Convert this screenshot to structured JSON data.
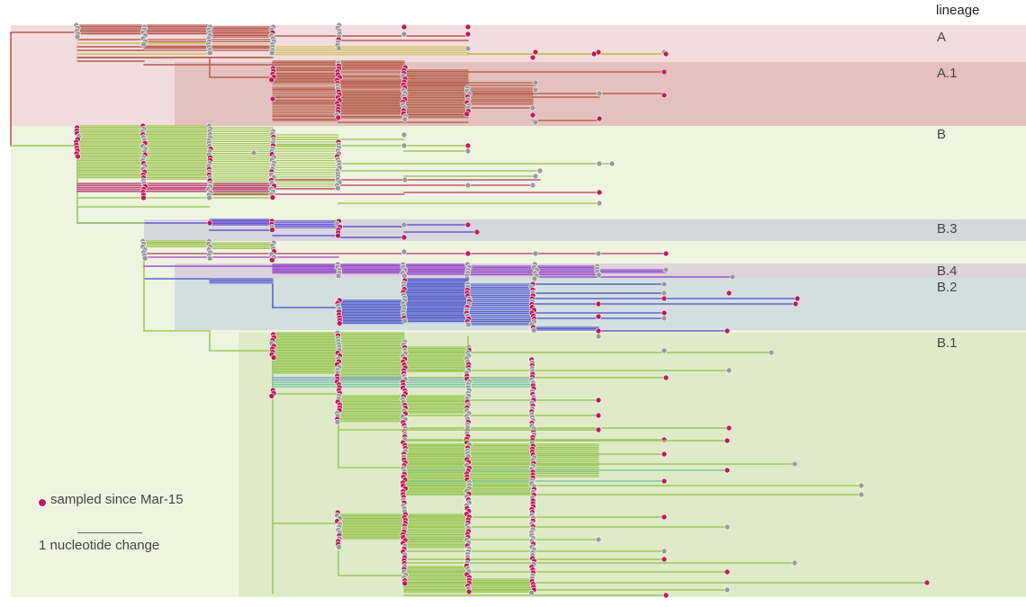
{
  "legend": {
    "title": "lineage",
    "sampled_label": "sampled since Mar-15",
    "scale_label": "1 nucleotide change"
  },
  "colors": {
    "sampled_tip": "#c2185b",
    "other_tip": "#999999"
  },
  "lineages": [
    {
      "name": "A",
      "band": "#f2dcdd",
      "branch": "#b85a52"
    },
    {
      "name": "A.1",
      "band": "#e4c1bf",
      "branch": "#b8634f"
    },
    {
      "name": "B",
      "band": "#eef4e0",
      "branch": "#a3c85a"
    },
    {
      "name": "B.3",
      "band": "#d6d6de",
      "branch": "#6a55d2"
    },
    {
      "name": "B.4",
      "band": "#ddd3dd",
      "branch": "#9b52cc"
    },
    {
      "name": "B.2",
      "band": "#d3dfdf",
      "branch": "#5b63cf"
    },
    {
      "name": "B.1",
      "band": "#dfebc8",
      "branch": "#9cc758"
    }
  ]
}
